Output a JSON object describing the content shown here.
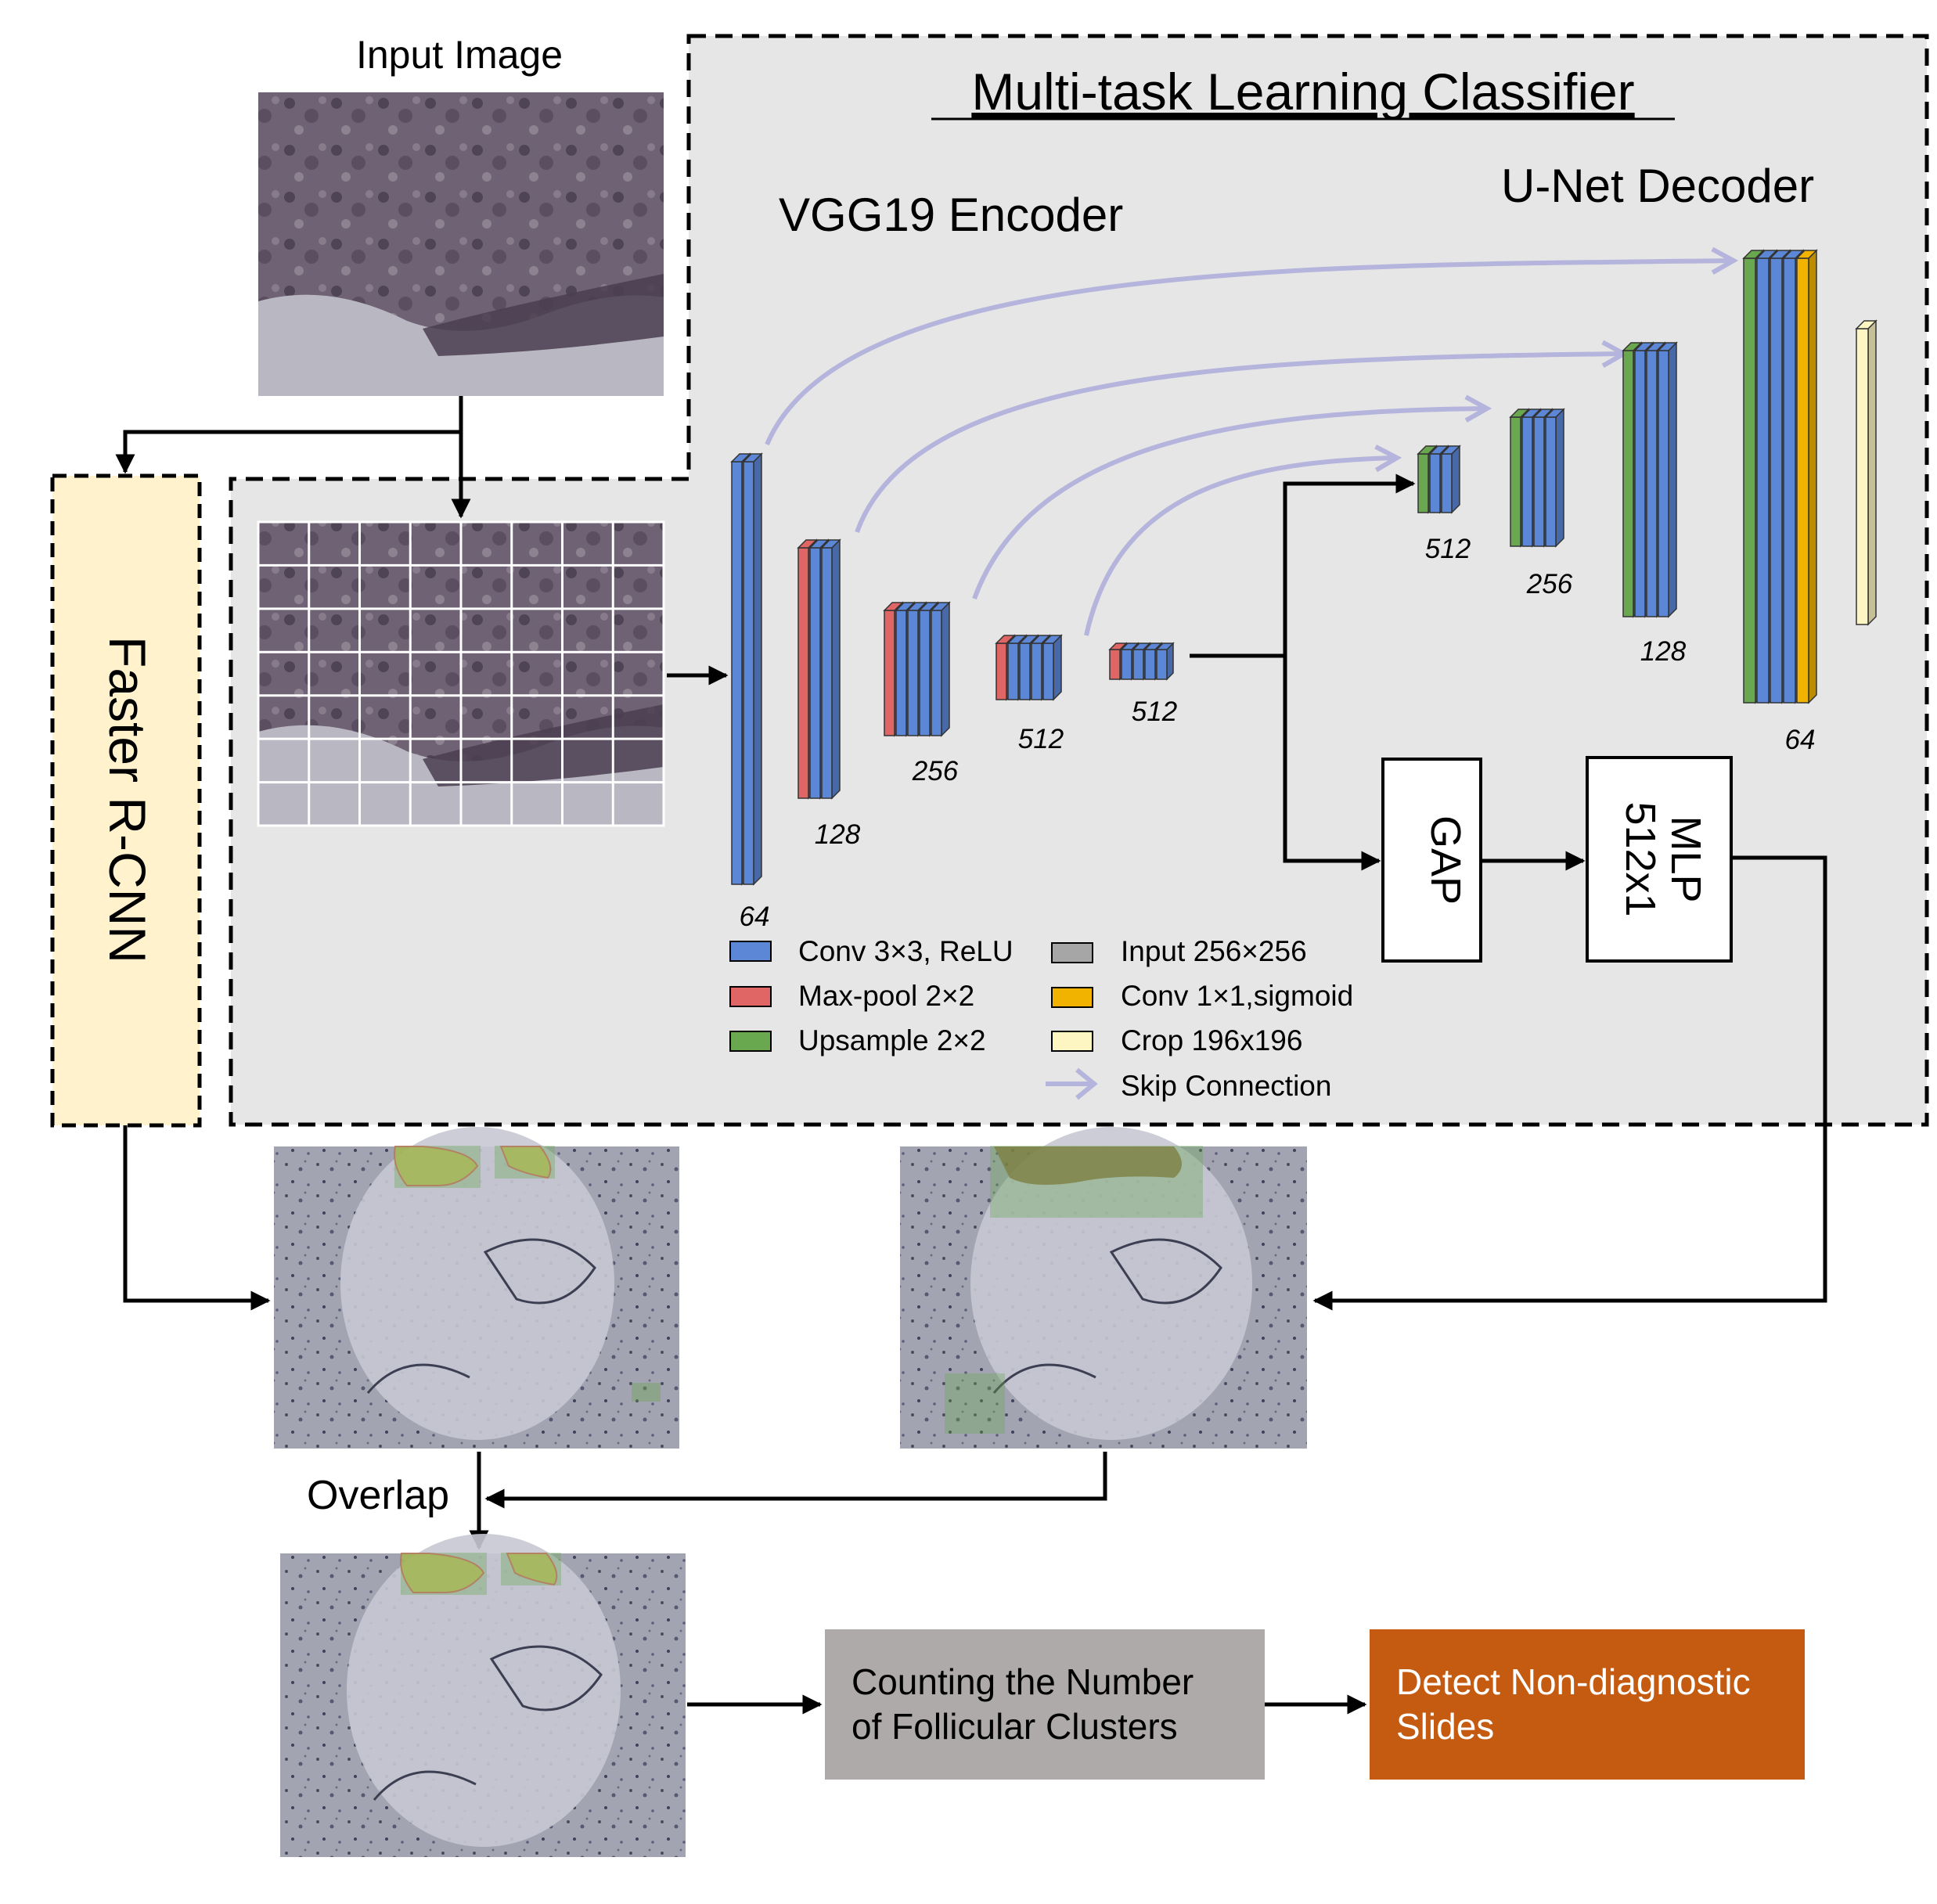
{
  "input_label": "Input Image",
  "mtl_title": "Multi-task Learning Classifier",
  "encoder_label": "VGG19 Encoder",
  "decoder_label": "U-Net Decoder",
  "faster_rcnn_label": "Faster R-CNN",
  "encoder_channels": [
    "64",
    "128",
    "256",
    "512",
    "512"
  ],
  "decoder_channels": [
    "512",
    "256",
    "128",
    "64"
  ],
  "gap_label": "GAP",
  "mlp_label": [
    "MLP",
    "512x1"
  ],
  "overlap_label": "Overlap",
  "counting_box": [
    "Counting the Number",
    "of Follicular Clusters"
  ],
  "detect_box": [
    "Detect Non-diagnostic",
    "Slides"
  ],
  "legend": [
    {
      "label": "Conv 3×3, ReLU",
      "color": "#5b87d6"
    },
    {
      "label": "Max-pool 2×2",
      "color": "#e06666"
    },
    {
      "label": "Upsample 2×2",
      "color": "#6aa84f"
    },
    {
      "label": "Input 256×256",
      "color": "#a6a6a6"
    },
    {
      "label": "Conv 1×1,sigmoid",
      "color": "#f1b300"
    },
    {
      "label": "Crop 196x196",
      "color": "#fdf6c3"
    },
    {
      "label": "Skip Connection",
      "color": "#b4b4dc"
    }
  ],
  "colors": {
    "panel": "#e6e6e6",
    "rcnn_fill": "#fff2cc",
    "counting_fill": "#aeaaaa",
    "detect_fill": "#c55a11",
    "skip": "#b4b4dc",
    "conv": "#5b87d6",
    "pool": "#e06666",
    "upsample": "#6aa84f",
    "sigmoid": "#f1b300",
    "crop": "#fdf6c3"
  }
}
